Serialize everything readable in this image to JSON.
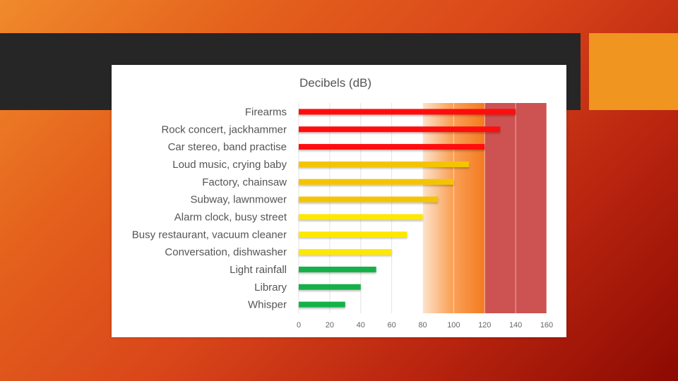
{
  "slide": {
    "colors": {
      "band": "#262626",
      "accent": "#f0951f"
    }
  },
  "chart_data": {
    "type": "bar",
    "orientation": "horizontal",
    "title": "Decibels (dB)",
    "xlabel": "",
    "ylabel": "",
    "categories": [
      "Firearms",
      "Rock concert, jackhammer",
      "Car stereo, band practise",
      "Loud music, crying baby",
      "Factory, chainsaw",
      "Subway, lawnmower",
      "Alarm clock, busy street",
      "Busy restaurant, vacuum cleaner",
      "Conversation, dishwasher",
      "Light rainfall",
      "Library",
      "Whisper"
    ],
    "values": [
      140,
      130,
      120,
      110,
      100,
      90,
      80,
      70,
      60,
      50,
      40,
      30
    ],
    "bar_colors": [
      "#ff1010",
      "#ff1010",
      "#ff1010",
      "#f5c400",
      "#f5c400",
      "#f5c400",
      "#ffe800",
      "#ffe800",
      "#ffe800",
      "#18b04a",
      "#18b04a",
      "#18b04a"
    ],
    "xlim": [
      0,
      160
    ],
    "xticks": [
      "0",
      "20",
      "40",
      "60",
      "80",
      "100",
      "120",
      "140",
      "160"
    ],
    "grid": true,
    "zones": [
      {
        "from": 80,
        "to": 120,
        "style": "gradient",
        "color": "#f47a1f"
      },
      {
        "from": 120,
        "to": 160,
        "style": "solid",
        "color": "#cd5252"
      }
    ]
  }
}
